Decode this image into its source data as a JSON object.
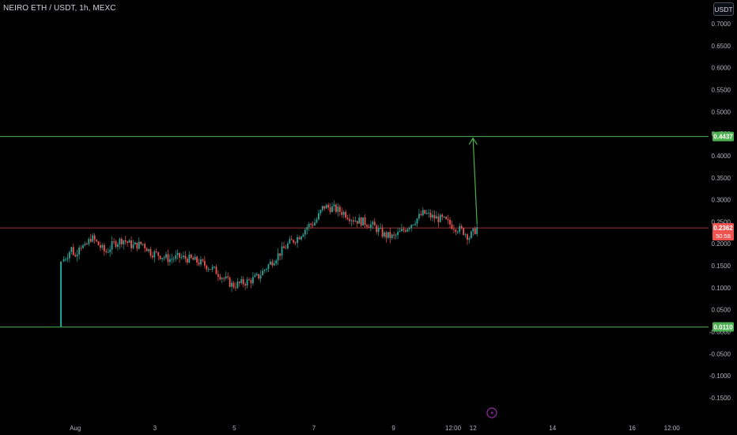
{
  "header": {
    "symbol_title": "NEIRO ETH / USDT, 1h, MEXC"
  },
  "toolbar": {
    "currency_label": "USDT"
  },
  "colors": {
    "up": "#26a69a",
    "down": "#ef5350",
    "level_line": "#4caf50",
    "current_line": "#ef5350",
    "arrow": "#4caf50",
    "event_icon": "#9c27b0"
  },
  "chart_data": {
    "type": "candlestick",
    "title": "NEIRO ETH / USDT, 1h, MEXC",
    "y_axis": {
      "min": -0.17,
      "max": 0.72,
      "ticks": [
        0.7,
        0.65,
        0.6,
        0.55,
        0.5,
        0.45,
        0.4,
        0.35,
        0.3,
        0.25,
        0.2,
        0.15,
        0.1,
        0.05,
        0,
        -0.05,
        -0.1,
        -0.15
      ],
      "tick_labels": [
        "0.7000",
        "0.6500",
        "0.6000",
        "0.5500",
        "0.5000",
        "0.4500",
        "0.4000",
        "0.3500",
        "0.3000",
        "0.2500",
        "0.2000",
        "0.1500",
        "0.1000",
        "0.0500",
        "-0.0000",
        "-0.0500",
        "-0.1000",
        "-0.1500"
      ]
    },
    "x_axis": {
      "tick_labels": [
        "Aug",
        "3",
        "5",
        "7",
        "9",
        "12:00",
        "12",
        "14",
        "16",
        "12:00"
      ],
      "tick_positions": [
        0.0,
        1.0,
        2.0,
        3.0,
        4.0,
        4.75,
        5.0,
        6.0,
        7.0,
        7.5
      ],
      "range": [
        -0.35,
        8.0
      ]
    },
    "levels": [
      {
        "name": "upper",
        "value": 0.4437,
        "label": "0.4437"
      },
      {
        "name": "lower",
        "value": 0.011,
        "label": "0.0110"
      }
    ],
    "current_price": {
      "value": 0.2362,
      "label": "0.2362",
      "countdown": "50:58"
    },
    "projection_arrow": {
      "from": {
        "x": 5.05,
        "y": 0.245
      },
      "to": {
        "x": 5.0,
        "y": 0.44
      }
    },
    "price_path": [
      [
        -0.18,
        0.011
      ],
      [
        -0.17,
        0.16
      ],
      [
        -0.1,
        0.175
      ],
      [
        -0.05,
        0.19
      ],
      [
        0.0,
        0.17
      ],
      [
        0.05,
        0.2
      ],
      [
        0.12,
        0.19
      ],
      [
        0.2,
        0.215
      ],
      [
        0.28,
        0.2
      ],
      [
        0.38,
        0.18
      ],
      [
        0.48,
        0.2
      ],
      [
        0.6,
        0.21
      ],
      [
        0.72,
        0.195
      ],
      [
        0.85,
        0.2
      ],
      [
        0.95,
        0.18
      ],
      [
        1.05,
        0.175
      ],
      [
        1.18,
        0.165
      ],
      [
        1.3,
        0.17
      ],
      [
        1.45,
        0.165
      ],
      [
        1.6,
        0.155
      ],
      [
        1.75,
        0.14
      ],
      [
        1.88,
        0.12
      ],
      [
        1.98,
        0.105
      ],
      [
        2.08,
        0.11
      ],
      [
        2.18,
        0.115
      ],
      [
        2.3,
        0.125
      ],
      [
        2.42,
        0.15
      ],
      [
        2.55,
        0.175
      ],
      [
        2.68,
        0.2
      ],
      [
        2.8,
        0.215
      ],
      [
        2.92,
        0.24
      ],
      [
        3.02,
        0.25
      ],
      [
        3.12,
        0.285
      ],
      [
        3.25,
        0.28
      ],
      [
        3.38,
        0.27
      ],
      [
        3.5,
        0.255
      ],
      [
        3.62,
        0.25
      ],
      [
        3.75,
        0.24
      ],
      [
        3.88,
        0.22
      ],
      [
        4.0,
        0.215
      ],
      [
        4.12,
        0.23
      ],
      [
        4.25,
        0.25
      ],
      [
        4.38,
        0.27
      ],
      [
        4.5,
        0.26
      ],
      [
        4.62,
        0.255
      ],
      [
        4.75,
        0.24
      ],
      [
        4.88,
        0.228
      ],
      [
        4.95,
        0.215
      ],
      [
        5.0,
        0.225
      ],
      [
        5.05,
        0.2362
      ]
    ]
  }
}
